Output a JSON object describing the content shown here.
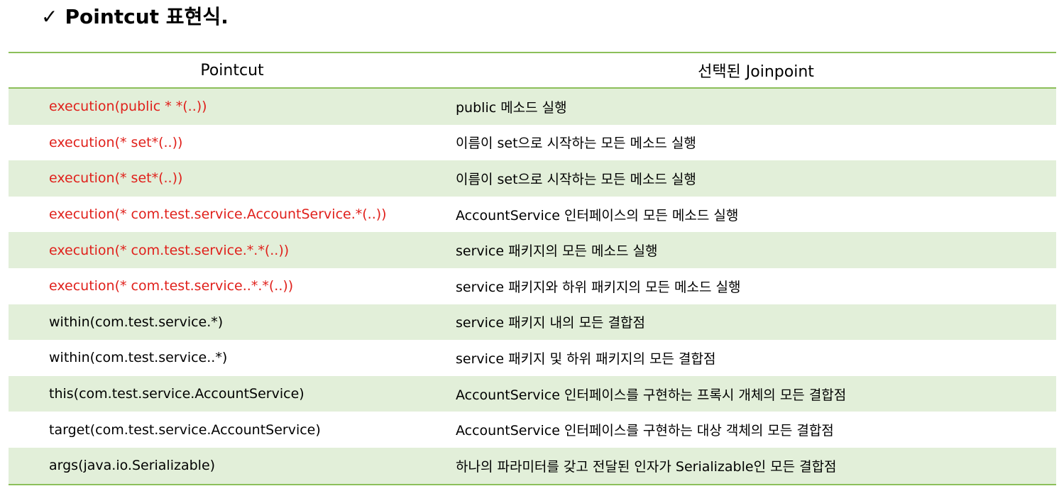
{
  "title": {
    "check_glyph": "✓",
    "text": "Pointcut 표현식."
  },
  "table": {
    "headers": {
      "pointcut": "Pointcut",
      "joinpoint": "선택된 Joinpoint"
    },
    "rows": [
      {
        "pointcut": "execution(public * *(..))",
        "joinpoint": "public 메소드 실행",
        "color": "#e0201b"
      },
      {
        "pointcut": "execution(* set*(..))",
        "joinpoint": "이름이 set으로 시작하는 모든 메소드 실행",
        "color": "#e0201b"
      },
      {
        "pointcut": "execution(* set*(..))",
        "joinpoint": "이름이 set으로 시작하는 모든 메소드 실행",
        "color": "#e0201b"
      },
      {
        "pointcut": "execution(* com.test.service.AccountService.*(..))",
        "joinpoint": "AccountService 인터페이스의 모든 메소드 실행",
        "color": "#e0201b"
      },
      {
        "pointcut": "execution(* com.test.service.*.*(..))",
        "joinpoint": "service 패키지의 모든 메소드 실행",
        "color": "#e0201b"
      },
      {
        "pointcut": "execution(* com.test.service..*.*(..))",
        "joinpoint": "service 패키지와 하위 패키지의 모든 메소드 실행",
        "color": "#e0201b"
      },
      {
        "pointcut": "within(com.test.service.*)",
        "joinpoint": "service 패키지 내의 모든 결합점",
        "color": "#000000"
      },
      {
        "pointcut": "within(com.test.service..*)",
        "joinpoint": "service 패키지 및 하위 패키지의 모든 결합점",
        "color": "#000000"
      },
      {
        "pointcut": "this(com.test.service.AccountService)",
        "joinpoint": "AccountService 인터페이스를 구현하는 프록시 개체의 모든 결합점",
        "color": "#000000"
      },
      {
        "pointcut": "target(com.test.service.AccountService)",
        "joinpoint": "AccountService 인터페이스를 구현하는 대상 객체의 모든 결합점",
        "color": "#000000"
      },
      {
        "pointcut": "args(java.io.Serializable)",
        "joinpoint": "하나의 파라미터를 갖고 전달된 인자가 Serializable인 모든 결합점",
        "color": "#000000"
      }
    ]
  },
  "colors": {
    "accent_border": "#8cbf5a",
    "row_stripe": "#e2efd9",
    "execution_text": "#e0201b"
  }
}
